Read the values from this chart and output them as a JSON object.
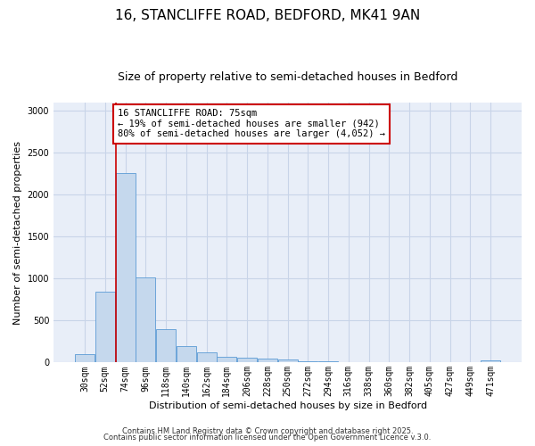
{
  "title": "16, STANCLIFFE ROAD, BEDFORD, MK41 9AN",
  "subtitle": "Size of property relative to semi-detached houses in Bedford",
  "xlabel": "Distribution of semi-detached houses by size in Bedford",
  "ylabel": "Number of semi-detached properties",
  "bins": [
    "30sqm",
    "52sqm",
    "74sqm",
    "96sqm",
    "118sqm",
    "140sqm",
    "162sqm",
    "184sqm",
    "206sqm",
    "228sqm",
    "250sqm",
    "272sqm",
    "294sqm",
    "316sqm",
    "338sqm",
    "360sqm",
    "382sqm",
    "405sqm",
    "427sqm",
    "449sqm",
    "471sqm"
  ],
  "values": [
    100,
    840,
    2260,
    1020,
    400,
    200,
    120,
    70,
    55,
    45,
    35,
    20,
    10,
    5,
    3,
    2,
    1,
    1,
    1,
    1,
    30
  ],
  "bar_color": "#c5d8ed",
  "bar_edge_color": "#5b9bd5",
  "grid_color": "#c8d4e8",
  "bg_color": "#e8eef8",
  "property_size": 75,
  "pct_smaller": 19,
  "pct_larger": 80,
  "count_smaller": 942,
  "count_larger": 4052,
  "annotation_box_color": "#cc0000",
  "property_line_color": "#cc0000",
  "title_fontsize": 11,
  "subtitle_fontsize": 9,
  "tick_fontsize": 7,
  "ylabel_fontsize": 8,
  "xlabel_fontsize": 8,
  "footer_line1": "Contains HM Land Registry data © Crown copyright and database right 2025.",
  "footer_line2": "Contains public sector information licensed under the Open Government Licence v.3.0.",
  "ylim": [
    0,
    3100
  ],
  "property_bar_index": 2
}
